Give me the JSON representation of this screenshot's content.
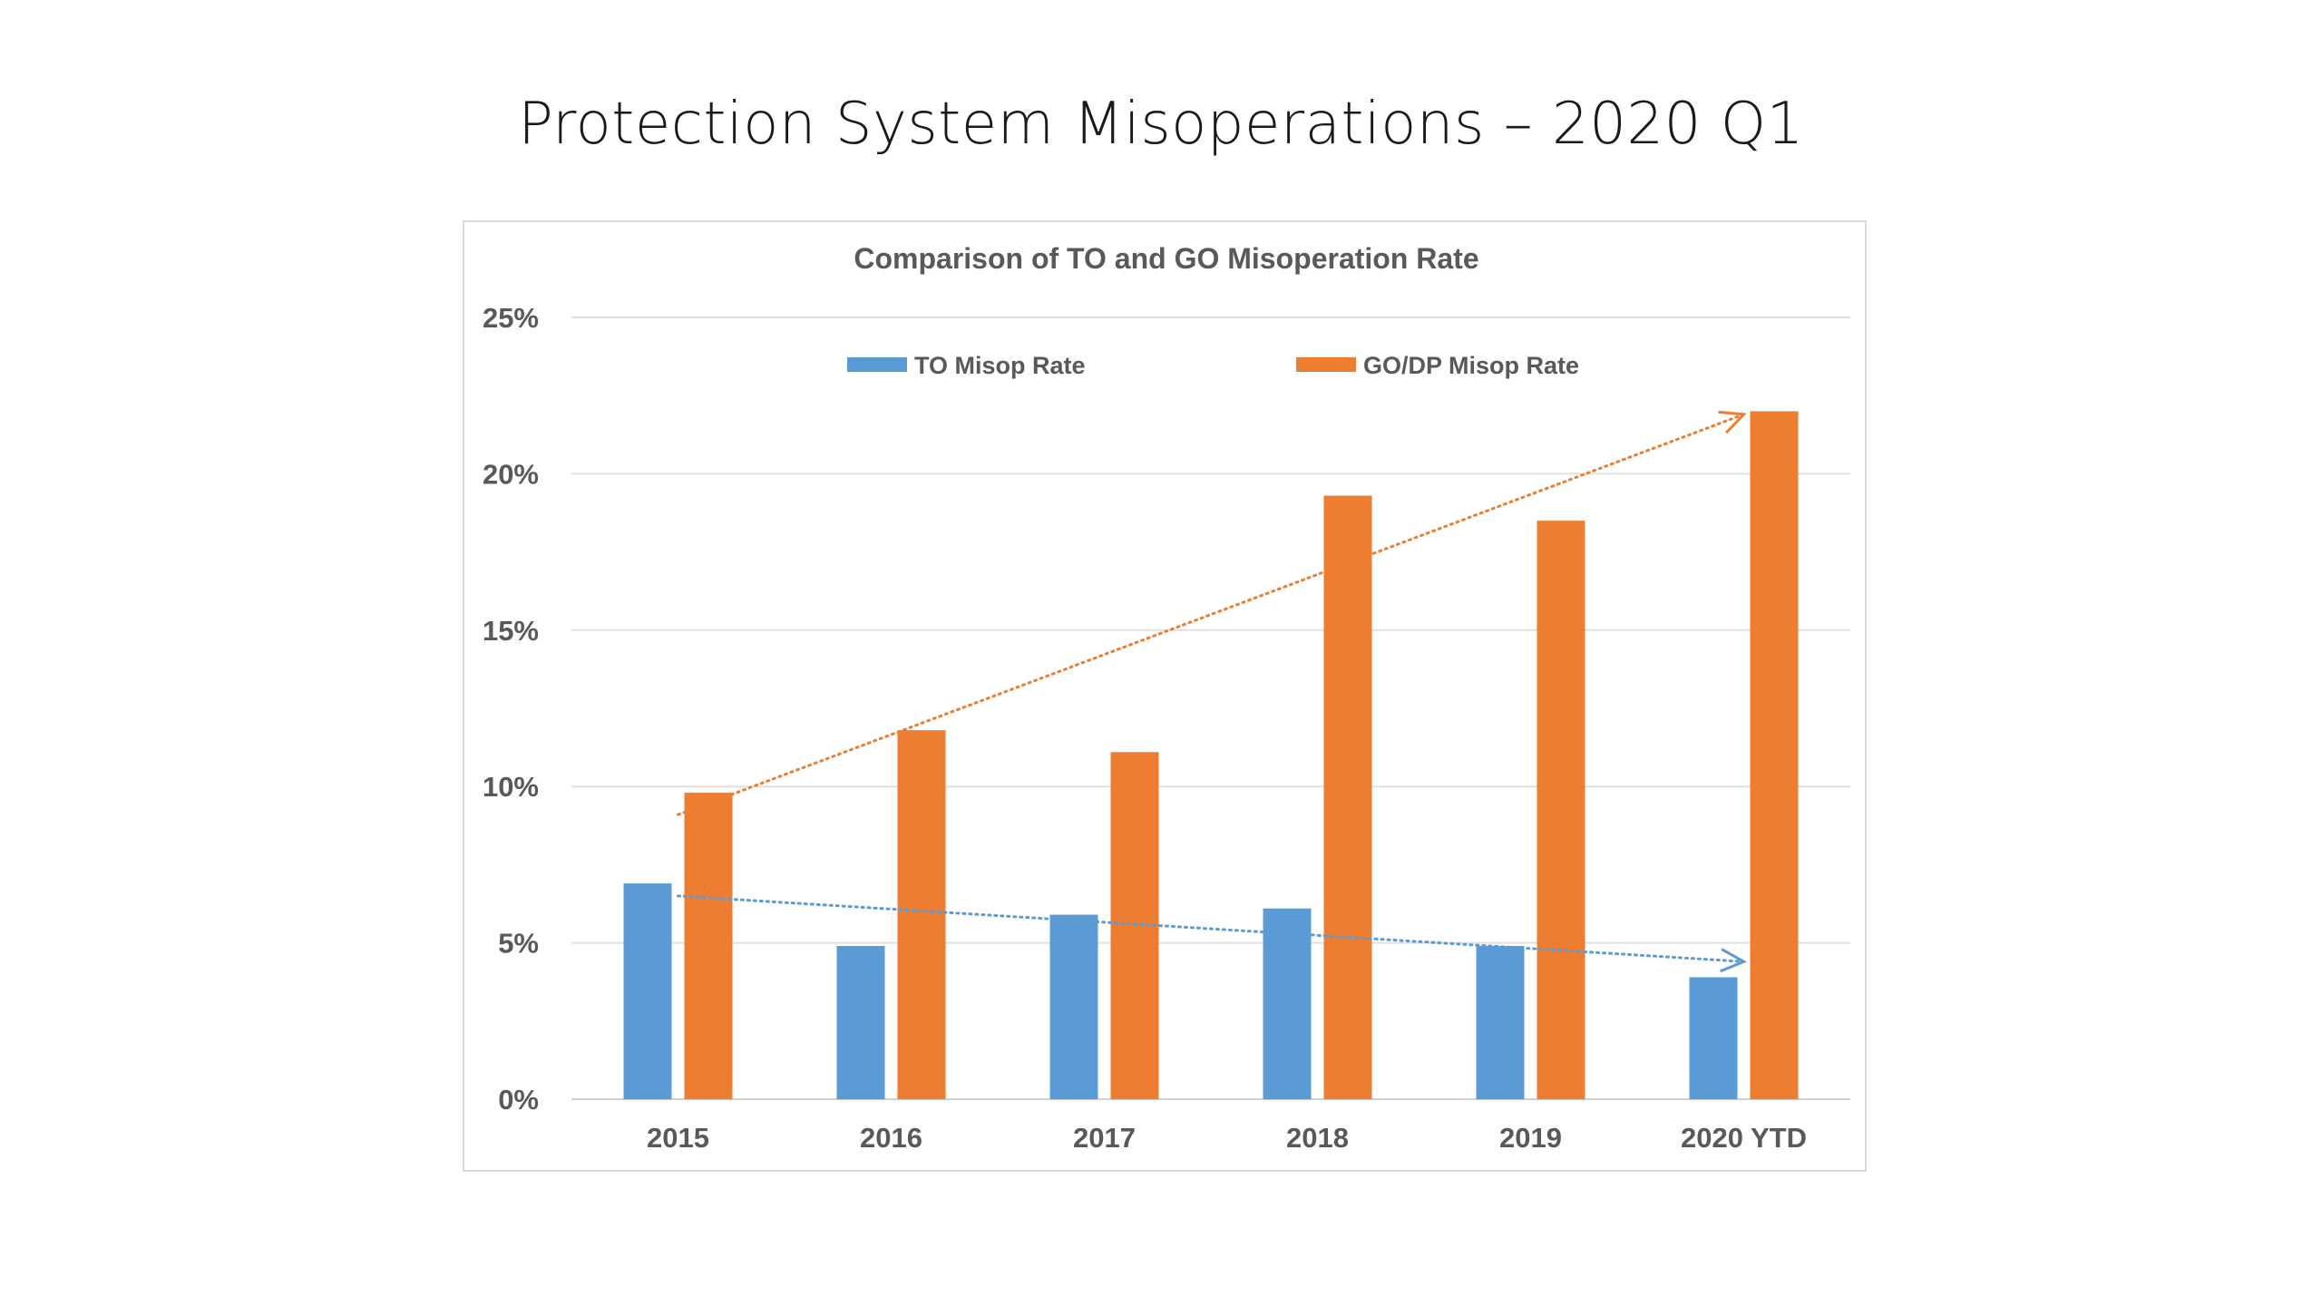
{
  "slide": {
    "title": "Protection System Misoperations – 2020 Q1"
  },
  "chart_data": {
    "type": "bar",
    "title": "Comparison of TO and GO Misoperation Rate",
    "xlabel": "",
    "ylabel": "",
    "categories": [
      "2015",
      "2016",
      "2017",
      "2018",
      "2019",
      "2020 YTD"
    ],
    "series": [
      {
        "name": "TO Misop Rate",
        "color": "#5b9bd5",
        "values": [
          6.9,
          4.9,
          5.9,
          6.1,
          4.9,
          3.9
        ],
        "trend": {
          "style": "dotted-arrow",
          "start": 6.5,
          "end": 4.4
        }
      },
      {
        "name": "GO/DP Misop Rate",
        "color": "#ed7d31",
        "values": [
          9.8,
          11.8,
          11.1,
          19.3,
          18.5,
          22.0
        ],
        "trend": {
          "style": "dotted-arrow",
          "start": 9.1,
          "end": 21.9
        }
      }
    ],
    "ylim": [
      0,
      25
    ],
    "yticks": [
      0,
      5,
      10,
      15,
      20,
      25
    ],
    "ytick_labels": [
      "0%",
      "5%",
      "10%",
      "15%",
      "20%",
      "25%"
    ],
    "grid": "horizontal",
    "legend_position": "top"
  }
}
